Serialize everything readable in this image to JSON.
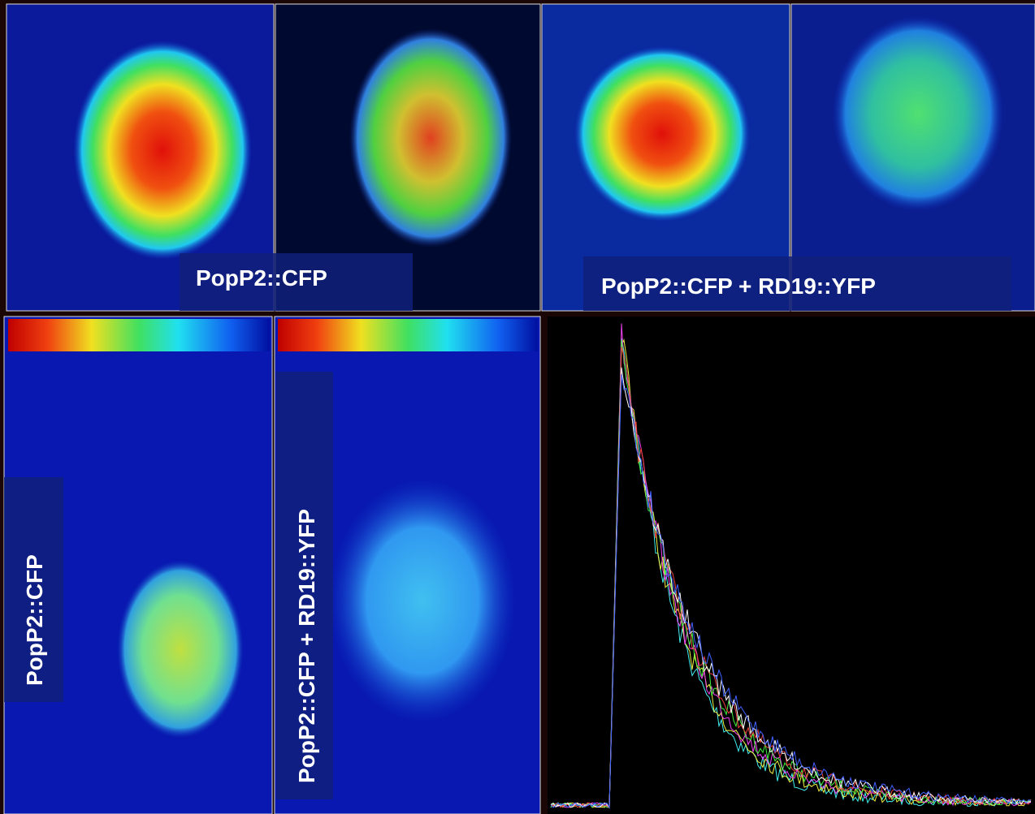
{
  "top_row": {
    "labels": [
      "PopP2::CFP",
      "PopP2::CFP + RD19::YFP"
    ]
  },
  "bottom_row": {
    "labels": [
      "PopP2::CFP",
      "PopP2::CFP + RD19::YFP"
    ]
  }
}
